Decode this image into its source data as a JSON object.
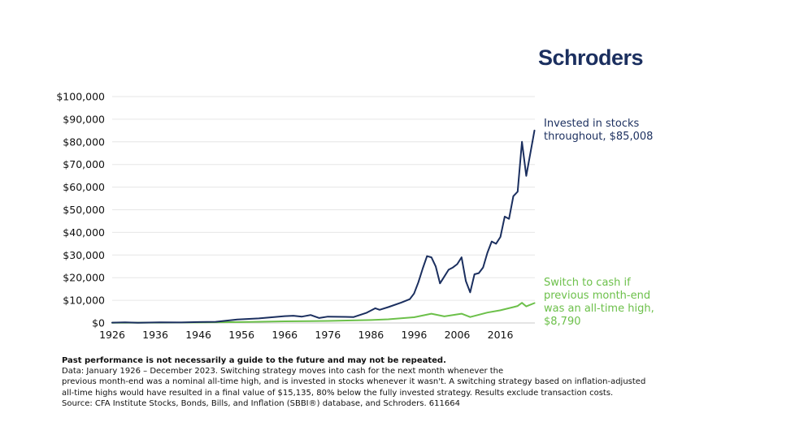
{
  "brand": {
    "name": "Schroders",
    "color": "#1b2f5f"
  },
  "chart_data": {
    "type": "line",
    "title": "",
    "xlabel": "",
    "ylabel": "",
    "xlim": [
      1926,
      2024
    ],
    "ylim": [
      0,
      100000
    ],
    "x_ticks": [
      1926,
      1936,
      1946,
      1956,
      1966,
      1976,
      1986,
      1996,
      2006,
      2016
    ],
    "x_tick_labels": [
      "1926",
      "1936",
      "1946",
      "1956",
      "1966",
      "1976",
      "1986",
      "1996",
      "2006",
      "2016"
    ],
    "y_ticks": [
      0,
      10000,
      20000,
      30000,
      40000,
      50000,
      60000,
      70000,
      80000,
      90000,
      100000
    ],
    "y_tick_labels": [
      "$0",
      "$10,000",
      "$20,000",
      "$30,000",
      "$40,000",
      "$50,000",
      "$60,000",
      "$70,000",
      "$80,000",
      "$90,000",
      "$100,000"
    ],
    "grid": "horizontal",
    "series": [
      {
        "name": "Invested in stocks throughout",
        "label_lines": [
          "Invested in stocks",
          "throughout, $85,008"
        ],
        "color": "#1b2f5f",
        "x": [
          1926,
          1929,
          1932,
          1937,
          1942,
          1946,
          1950,
          1955,
          1960,
          1966,
          1968,
          1970,
          1972,
          1974,
          1976,
          1980,
          1982,
          1985,
          1987,
          1988,
          1990,
          1993,
          1995,
          1996,
          1997,
          1998,
          1999,
          2000,
          2001,
          2002,
          2003,
          2004,
          2005,
          2006,
          2007,
          2008,
          2009,
          2010,
          2011,
          2012,
          2013,
          2014,
          2015,
          2016,
          2017,
          2018,
          2019,
          2020,
          2021,
          2022,
          2023.9
        ],
        "y": [
          150,
          300,
          80,
          250,
          200,
          400,
          500,
          1500,
          2000,
          3000,
          3200,
          2800,
          3500,
          2200,
          2800,
          2700,
          2600,
          4500,
          6500,
          5800,
          7000,
          9000,
          10500,
          13000,
          18000,
          24000,
          29500,
          29000,
          25000,
          17500,
          20500,
          23500,
          24500,
          26000,
          29000,
          18500,
          13500,
          21500,
          22000,
          24500,
          31000,
          36000,
          35000,
          38000,
          47000,
          46000,
          56000,
          58000,
          80000,
          65000,
          85008
        ],
        "final_value": 85008
      },
      {
        "name": "Switch to cash if previous month-end was an all-time high",
        "label_lines": [
          "Switch to cash if",
          "previous month-end",
          "was an all-time high,",
          "$8,790"
        ],
        "color": "#6cc04a",
        "x": [
          1926,
          1936,
          1946,
          1956,
          1966,
          1976,
          1986,
          1990,
          1996,
          2000,
          2003,
          2007,
          2009,
          2013,
          2016,
          2019,
          2020,
          2021,
          2022,
          2023.9
        ],
        "y": [
          100,
          150,
          200,
          400,
          700,
          900,
          1300,
          1600,
          2500,
          4100,
          2900,
          4100,
          2600,
          4600,
          5600,
          7000,
          7500,
          8900,
          7300,
          8790
        ],
        "final_value": 8790
      }
    ]
  },
  "footnote": {
    "bold_line": "Past performance is not necessarily a guide to the future and may not be repeated.",
    "lines": [
      "Data: January 1926 – December 2023. Switching strategy moves into cash for the next month whenever the",
      "previous month-end was a nominal all-time high, and is invested in stocks whenever it wasn't. A switching strategy based on inflation-adjusted",
      "all-time highs would have resulted in a final value of $15,135, 80% below the fully invested strategy. Results exclude transaction costs.",
      "Source: CFA Institute Stocks, Bonds, Bills, and Inflation (SBBI®) database, and Schroders. 611664"
    ]
  }
}
